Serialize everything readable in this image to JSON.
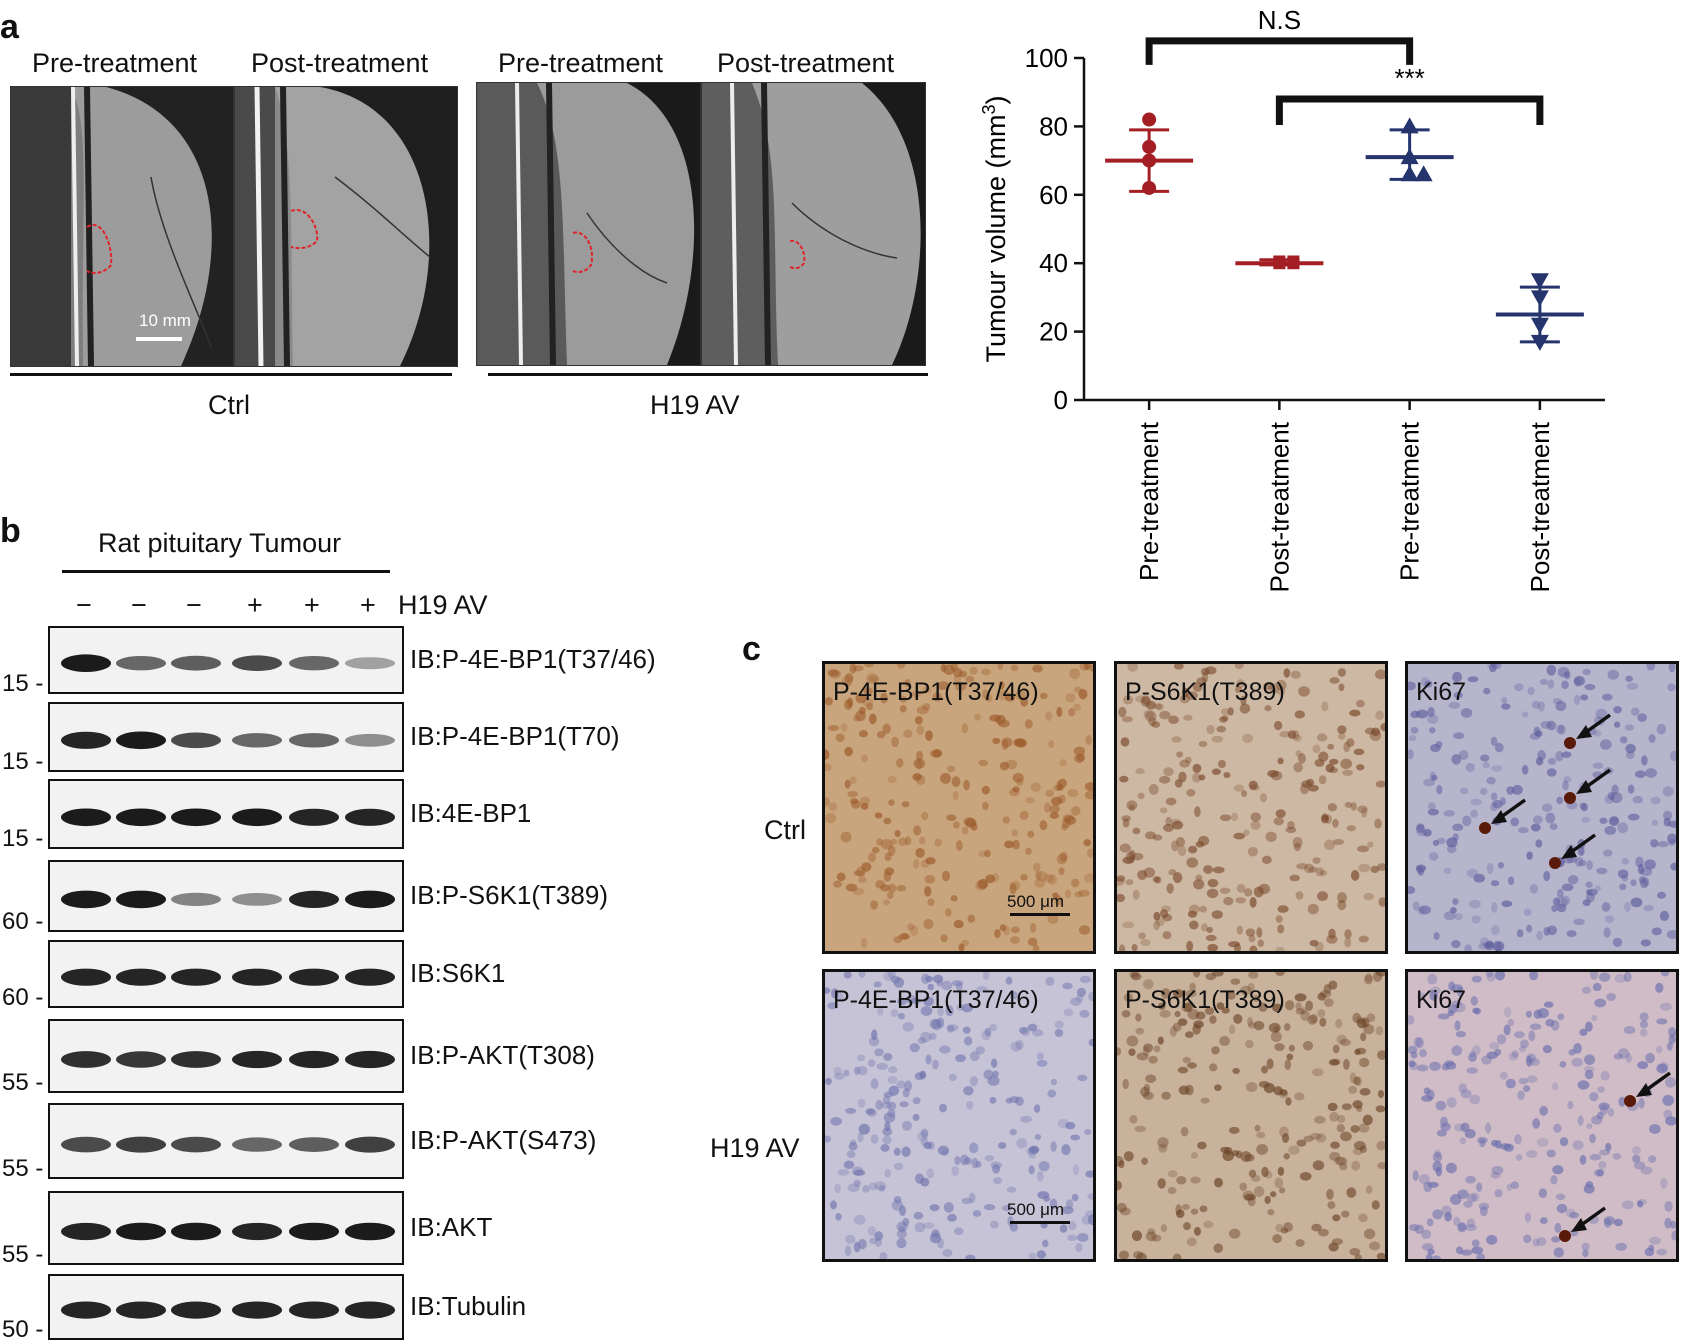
{
  "panel_a": {
    "letter": "a",
    "mri_titles": [
      "Pre-treatment",
      "Post-treatment",
      "Pre-treatment",
      "Post-treatment"
    ],
    "scale_bar": "10 mm",
    "group_ctrl": "Ctrl",
    "group_h19": "H19 AV",
    "colors": {
      "ctrl": "#a31f24",
      "h19": "#26346e",
      "outline": "#e0242a"
    }
  },
  "chart_data": {
    "type": "scatter",
    "title": "",
    "ylabel": "Tumour volume (mm",
    "ylabel_sup": "3",
    "ylabel_close": ")",
    "ylim": [
      0,
      100
    ],
    "yticks": [
      0,
      20,
      40,
      60,
      80,
      100
    ],
    "categories": [
      "Pre-treatment",
      "Post-treatment",
      "Pre-treatment",
      "Post-treatment"
    ],
    "series": [
      {
        "marker": "circle",
        "color": "#a31f24",
        "category_index": 0,
        "points": [
          82,
          74,
          70,
          62
        ],
        "mean": 70,
        "sd_low": 61,
        "sd_high": 79
      },
      {
        "marker": "square",
        "color": "#a31f24",
        "category_index": 1,
        "points": [
          40.5,
          40,
          40,
          40.5
        ],
        "mean": 40,
        "sd_low": 39.5,
        "sd_high": 41
      },
      {
        "marker": "triangle-up",
        "color": "#26346e",
        "category_index": 2,
        "points": [
          80,
          71,
          66,
          66
        ],
        "mean": 71,
        "sd_low": 64.5,
        "sd_high": 79
      },
      {
        "marker": "triangle-down",
        "color": "#26346e",
        "category_index": 3,
        "points": [
          35,
          30,
          22,
          17
        ],
        "mean": 25,
        "sd_low": 17,
        "sd_high": 33
      }
    ],
    "annotations": [
      {
        "text": "N.S",
        "from": 0,
        "to": 2,
        "level": 105
      },
      {
        "text": "***",
        "from": 1,
        "to": 3,
        "level": 88
      }
    ]
  },
  "panel_b": {
    "letter": "b",
    "title": "Rat pituitary Tumour",
    "treatment_label": "H19 AV",
    "lane_signs": [
      "−",
      "−",
      "−",
      "+",
      "+",
      "+"
    ],
    "blots": [
      {
        "ib": "IB:P-4E-BP1(T37/46)",
        "mw": "15 -",
        "bands": [
          0.95,
          0.55,
          0.6,
          0.7,
          0.55,
          0.25
        ]
      },
      {
        "ib": "IB:P-4E-BP1(T70)",
        "mw": "15 -",
        "bands": [
          0.9,
          0.95,
          0.7,
          0.55,
          0.55,
          0.35
        ]
      },
      {
        "ib": "IB:4E-BP1",
        "mw": "15 -",
        "bands": [
          0.95,
          0.95,
          0.95,
          0.95,
          0.9,
          0.9
        ]
      },
      {
        "ib": "IB:P-S6K1(T389)",
        "mw": "60 -",
        "bands": [
          0.95,
          0.95,
          0.4,
          0.35,
          0.9,
          0.95
        ]
      },
      {
        "ib": "IB:S6K1",
        "mw": "60 -",
        "bands": [
          0.9,
          0.9,
          0.9,
          0.9,
          0.9,
          0.9
        ]
      },
      {
        "ib": "IB:P-AKT(T308)",
        "mw": "55 -",
        "bands": [
          0.85,
          0.8,
          0.85,
          0.9,
          0.9,
          0.9
        ]
      },
      {
        "ib": "IB:P-AKT(S473)",
        "mw": "55 -",
        "bands": [
          0.7,
          0.75,
          0.7,
          0.55,
          0.6,
          0.75
        ]
      },
      {
        "ib": "IB:AKT",
        "mw": "55 -",
        "bands": [
          0.9,
          0.95,
          0.95,
          0.9,
          0.95,
          0.95
        ]
      },
      {
        "ib": "IB:Tubulin",
        "mw": "50 -",
        "bands": [
          0.9,
          0.9,
          0.9,
          0.9,
          0.9,
          0.9
        ]
      }
    ]
  },
  "panel_c": {
    "letter": "c",
    "row_labels": [
      "Ctrl",
      "H19 AV"
    ],
    "column_titles": [
      "P-4E-BP1(T37/46)",
      "P-S6K1(T389)",
      "Ki67"
    ],
    "scale_bar": "500 μm"
  }
}
